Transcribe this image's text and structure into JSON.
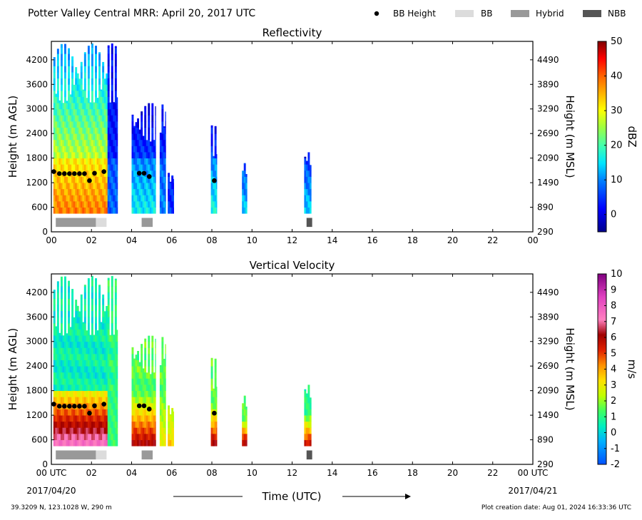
{
  "header": {
    "title": "Potter Valley Central MRR:  April 20, 2017 UTC",
    "legend": [
      {
        "label": "BB Height",
        "kind": "dot",
        "color": "#000000"
      },
      {
        "label": "BB",
        "kind": "box",
        "color": "#dcdcdc"
      },
      {
        "label": "Hybrid",
        "kind": "box",
        "color": "#999999"
      },
      {
        "label": "NBB",
        "kind": "box",
        "color": "#555555"
      }
    ]
  },
  "footer": {
    "location": "39.3209 N, 123.1028 W, 290 m",
    "creation": "Plot creation date: Aug 01, 2024 16:33:36 UTC",
    "time_label": "Time (UTC)",
    "date_start": "2017/04/20",
    "date_end": "2017/04/21"
  },
  "chart_data": [
    {
      "type": "heatmap",
      "title": "Reflectivity",
      "ylabel": "Height (m AGL)",
      "ylabel_right": "Height (m MSL)",
      "xlim": [
        0,
        24
      ],
      "ylim": [
        0,
        4650
      ],
      "x_ticks": [
        "00",
        "02",
        "04",
        "06",
        "08",
        "10",
        "12",
        "14",
        "16",
        "18",
        "20",
        "22",
        "00"
      ],
      "y_ticks": [
        0,
        600,
        1200,
        1800,
        2400,
        3000,
        3600,
        4200
      ],
      "y_ticks_right": [
        "290",
        "890",
        "1490",
        "2090",
        "2690",
        "3290",
        "3890",
        "4490"
      ],
      "colorbar": {
        "label": "dBZ",
        "min": -5,
        "max": 50,
        "ticks": [
          0,
          10,
          20,
          30,
          40,
          50
        ]
      },
      "bb_height": [
        {
          "t": 0.12,
          "h": 1470
        },
        {
          "t": 0.4,
          "h": 1420
        },
        {
          "t": 0.65,
          "h": 1420
        },
        {
          "t": 0.9,
          "h": 1420
        },
        {
          "t": 1.15,
          "h": 1420
        },
        {
          "t": 1.4,
          "h": 1420
        },
        {
          "t": 1.65,
          "h": 1420
        },
        {
          "t": 1.9,
          "h": 1250
        },
        {
          "t": 2.15,
          "h": 1430
        },
        {
          "t": 2.62,
          "h": 1470
        },
        {
          "t": 4.38,
          "h": 1430
        },
        {
          "t": 4.62,
          "h": 1430
        },
        {
          "t": 4.88,
          "h": 1350
        },
        {
          "t": 8.12,
          "h": 1250
        }
      ],
      "bb_type": [
        {
          "start": 0.22,
          "end": 2.22,
          "type": "Hybrid"
        },
        {
          "start": 2.22,
          "end": 2.75,
          "type": "BB"
        },
        {
          "start": 4.5,
          "end": 5.05,
          "type": "Hybrid"
        },
        {
          "start": 12.72,
          "end": 13.0,
          "type": "NBB"
        }
      ],
      "echo_periods": [
        {
          "start": 0.1,
          "end": 2.8,
          "top": 4600,
          "surface_dbz": 38,
          "top_dbz": 14
        },
        {
          "start": 2.8,
          "end": 3.3,
          "top": 4600,
          "surface_dbz": 8,
          "top_dbz": 6
        },
        {
          "start": 4.0,
          "end": 5.2,
          "top": 3150,
          "surface_dbz": 16,
          "top_dbz": 3
        },
        {
          "start": 5.4,
          "end": 5.7,
          "top": 3300,
          "surface_dbz": 10,
          "top_dbz": 6
        },
        {
          "start": 5.8,
          "end": 6.1,
          "top": 1500,
          "surface_dbz": 5,
          "top_dbz": 3
        },
        {
          "start": 7.95,
          "end": 8.25,
          "top": 2600,
          "surface_dbz": 17,
          "top_dbz": 5
        },
        {
          "start": 9.5,
          "end": 9.75,
          "top": 1800,
          "surface_dbz": 14,
          "top_dbz": 5
        },
        {
          "start": 12.6,
          "end": 12.95,
          "top": 2100,
          "surface_dbz": 14,
          "top_dbz": 3
        }
      ]
    },
    {
      "type": "heatmap",
      "title": "Vertical Velocity",
      "ylabel": "Height (m AGL)",
      "ylabel_right": "Height (m MSL)",
      "xlim": [
        0,
        24
      ],
      "ylim": [
        0,
        4650
      ],
      "x_ticks": [
        "00 UTC",
        "02",
        "04",
        "06",
        "08",
        "10",
        "12",
        "14",
        "16",
        "18",
        "20",
        "22",
        "00 UTC"
      ],
      "y_ticks": [
        0,
        600,
        1200,
        1800,
        2400,
        3000,
        3600,
        4200
      ],
      "y_ticks_right": [
        "290",
        "890",
        "1490",
        "2090",
        "2690",
        "3290",
        "3890",
        "4490"
      ],
      "colorbar": {
        "label": "m/s",
        "min": -2,
        "max": 10,
        "ticks": [
          -2,
          -1,
          0,
          1,
          2,
          3,
          4,
          5,
          6,
          7,
          8,
          9,
          10
        ]
      },
      "bb_height": [
        {
          "t": 0.12,
          "h": 1470
        },
        {
          "t": 0.4,
          "h": 1420
        },
        {
          "t": 0.65,
          "h": 1420
        },
        {
          "t": 0.9,
          "h": 1420
        },
        {
          "t": 1.15,
          "h": 1420
        },
        {
          "t": 1.4,
          "h": 1420
        },
        {
          "t": 1.65,
          "h": 1420
        },
        {
          "t": 1.9,
          "h": 1250
        },
        {
          "t": 2.15,
          "h": 1430
        },
        {
          "t": 2.62,
          "h": 1470
        },
        {
          "t": 4.38,
          "h": 1430
        },
        {
          "t": 4.62,
          "h": 1430
        },
        {
          "t": 4.88,
          "h": 1350
        },
        {
          "t": 8.12,
          "h": 1250
        }
      ],
      "bb_type": [
        {
          "start": 0.22,
          "end": 2.22,
          "type": "Hybrid"
        },
        {
          "start": 2.22,
          "end": 2.75,
          "type": "BB"
        },
        {
          "start": 4.5,
          "end": 5.05,
          "type": "Hybrid"
        },
        {
          "start": 12.72,
          "end": 13.0,
          "type": "NBB"
        }
      ],
      "echo_periods": [
        {
          "start": 0.1,
          "end": 2.8,
          "top": 4600,
          "surface_vel": 7.5,
          "top_vel": 0.5
        },
        {
          "start": 2.8,
          "end": 3.3,
          "top": 4600,
          "surface_vel": 1.2,
          "top_vel": 1.0
        },
        {
          "start": 4.0,
          "end": 5.2,
          "top": 3150,
          "surface_vel": 6.0,
          "top_vel": 1.5
        },
        {
          "start": 5.4,
          "end": 5.7,
          "top": 3300,
          "surface_vel": 3.0,
          "top_vel": 1.5
        },
        {
          "start": 5.8,
          "end": 6.1,
          "top": 1500,
          "surface_vel": 3.5,
          "top_vel": 2.5
        },
        {
          "start": 7.95,
          "end": 8.25,
          "top": 2600,
          "surface_vel": 6.0,
          "top_vel": 1.5
        },
        {
          "start": 9.5,
          "end": 9.75,
          "top": 1800,
          "surface_vel": 6.0,
          "top_vel": 1.5
        },
        {
          "start": 12.6,
          "end": 12.95,
          "top": 2100,
          "surface_vel": 5.5,
          "top_vel": 1.0
        }
      ]
    }
  ]
}
